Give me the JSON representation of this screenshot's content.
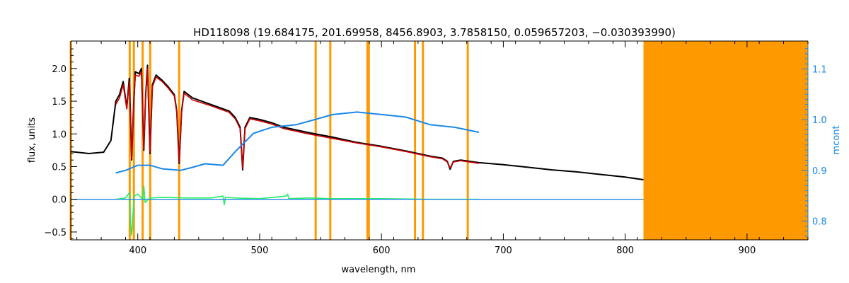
{
  "chart_data": {
    "type": "line",
    "title": "HD118098   (19.684175, 201.69958, 8456.8903, 3.7858150, 0.059657203, −0.030393990)",
    "xlabel": "wavelength, nm",
    "ylabel": "flux, units",
    "y2label": "mcont",
    "xlim": [
      345,
      950
    ],
    "ylim": [
      -0.62,
      2.42
    ],
    "y2lim": [
      0.763,
      1.155
    ],
    "x_ticks": [
      400,
      500,
      600,
      700,
      800,
      900
    ],
    "y_ticks": [
      -0.5,
      0.0,
      0.5,
      1.0,
      1.5,
      2.0
    ],
    "y_tick_labels": [
      "−0.5",
      "0.0",
      "0.5",
      "1.0",
      "1.5",
      "2.0"
    ],
    "y2_ticks": [
      0.8,
      0.9,
      1.0,
      1.1
    ],
    "y2_tick_labels": [
      "0.8",
      "0.9",
      "1.0",
      "1.1"
    ],
    "grid": false,
    "legend": "none",
    "colors": {
      "observed": "#000000",
      "model": "#cc0000",
      "residual": "#22ee66",
      "mcont": "#1a88e8",
      "masks": "#ff9900",
      "axes": "#000000",
      "right_axis": "#1a88e8"
    },
    "mask_lines": [
      345,
      393.4,
      396.8,
      404,
      410.2,
      434,
      546,
      558,
      588.5,
      589.6,
      627.5,
      634,
      670.8
    ],
    "mask_region": [
      815,
      950
    ],
    "series": [
      {
        "key": "observed",
        "x": [
          345,
          360,
          372,
          378,
          382,
          385,
          388,
          391,
          393,
          394,
          395,
          396.5,
          398,
          401,
          403,
          405,
          406.5,
          408,
          410,
          412,
          415,
          420,
          425,
          430,
          432,
          434.0,
          436,
          438,
          445,
          460,
          475,
          480,
          484,
          486.1,
          488,
          492,
          500,
          510,
          520,
          540,
          560,
          580,
          600,
          620,
          640,
          650,
          654,
          656.3,
          659,
          665,
          680,
          700,
          720,
          740,
          760,
          780,
          800,
          815
        ],
        "y": [
          0.73,
          0.7,
          0.72,
          0.9,
          1.5,
          1.6,
          1.8,
          1.4,
          1.85,
          1.3,
          0.6,
          1.4,
          1.95,
          1.92,
          2.0,
          0.75,
          1.6,
          2.05,
          0.7,
          1.75,
          1.9,
          1.82,
          1.72,
          1.6,
          1.35,
          0.55,
          1.35,
          1.65,
          1.55,
          1.45,
          1.35,
          1.25,
          1.1,
          0.45,
          1.1,
          1.25,
          1.22,
          1.17,
          1.1,
          1.02,
          0.95,
          0.87,
          0.81,
          0.74,
          0.66,
          0.63,
          0.58,
          0.46,
          0.58,
          0.6,
          0.56,
          0.53,
          0.49,
          0.45,
          0.42,
          0.38,
          0.34,
          0.3
        ]
      },
      {
        "key": "model",
        "x": [
          382,
          385,
          388,
          391,
          393,
          394,
          395,
          396.5,
          398,
          401,
          403,
          405,
          406.5,
          408,
          410,
          412,
          415,
          420,
          425,
          430,
          432,
          434.0,
          436,
          438,
          445,
          460,
          475,
          480,
          484,
          486.1,
          488,
          492,
          500,
          510,
          520,
          540,
          560,
          580,
          600,
          620,
          640,
          650,
          654,
          656.3,
          659,
          665,
          680
        ],
        "y": [
          1.45,
          1.55,
          1.75,
          1.38,
          1.8,
          1.28,
          0.62,
          1.38,
          1.9,
          1.88,
          1.95,
          0.78,
          1.58,
          2.0,
          0.72,
          1.72,
          1.87,
          1.8,
          1.7,
          1.58,
          1.33,
          0.57,
          1.33,
          1.62,
          1.52,
          1.43,
          1.33,
          1.23,
          1.08,
          0.47,
          1.08,
          1.23,
          1.2,
          1.15,
          1.08,
          1.0,
          0.93,
          0.86,
          0.8,
          0.73,
          0.65,
          0.62,
          0.57,
          0.48,
          0.57,
          0.59,
          0.55
        ]
      },
      {
        "key": "mcont",
        "axis": "right",
        "x": [
          382,
          390,
          400,
          410,
          420,
          435,
          445,
          455,
          470,
          480,
          495,
          510,
          530,
          545,
          560,
          580,
          600,
          620,
          640,
          660,
          680
        ],
        "y": [
          0.895,
          0.9,
          0.91,
          0.91,
          0.903,
          0.9,
          0.906,
          0.913,
          0.91,
          0.937,
          0.973,
          0.985,
          0.99,
          1.0,
          1.01,
          1.015,
          1.01,
          1.005,
          0.99,
          0.985,
          0.975
        ]
      },
      {
        "key": "residual",
        "x": [
          382,
          390,
          393,
          394,
          395,
          397,
          400,
          404,
          405,
          406,
          410,
          420,
          440,
          460,
          470,
          471,
          472,
          480,
          500,
          522,
          523,
          524,
          540,
          560,
          600,
          640,
          680
        ],
        "y": [
          0.0,
          0.02,
          0.1,
          -0.35,
          -0.55,
          0.05,
          0.08,
          0.0,
          0.2,
          -0.05,
          0.02,
          0.03,
          0.02,
          0.02,
          0.05,
          -0.08,
          0.03,
          0.02,
          0.01,
          0.05,
          0.08,
          0.01,
          0.02,
          0.01,
          0.01,
          0.0,
          0.0
        ]
      },
      {
        "key": "zero",
        "x": [
          345,
          815
        ],
        "y": [
          0.0,
          0.0
        ]
      }
    ]
  }
}
